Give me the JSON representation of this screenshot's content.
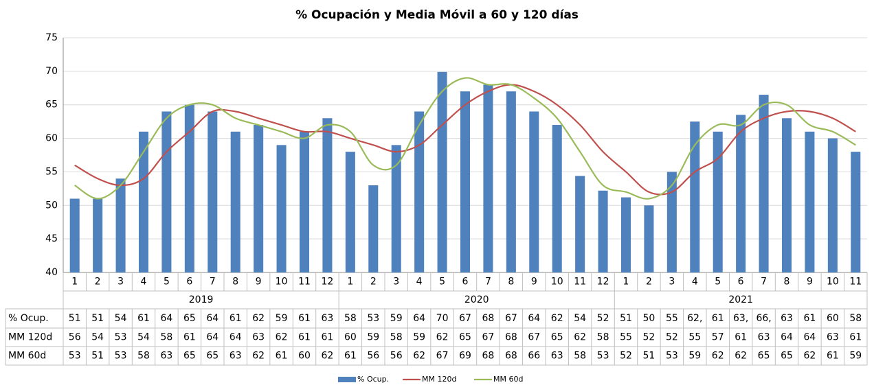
{
  "chart_data": {
    "type": "bar-line",
    "title": "% Ocupación y Media Móvil a 60 y 120 días",
    "groups": [
      {
        "name": "2019",
        "categories": [
          1,
          2,
          3,
          4,
          5,
          6,
          7,
          8,
          9,
          10,
          11,
          12
        ]
      },
      {
        "name": "2020",
        "categories": [
          1,
          2,
          3,
          4,
          5,
          6,
          7,
          8,
          9,
          10,
          11,
          12
        ]
      },
      {
        "name": "2021",
        "categories": [
          1,
          2,
          3,
          4,
          5,
          6,
          7,
          8,
          9,
          10,
          11
        ]
      }
    ],
    "series": [
      {
        "name": "% Ocup.",
        "type": "bar",
        "color": "#4f81bd",
        "values": [
          51,
          51,
          54,
          61,
          64,
          65,
          64,
          61,
          62,
          59,
          61,
          63,
          58,
          53,
          59,
          64,
          69.9,
          67,
          68,
          67,
          64,
          62,
          54.4,
          52.2,
          51.2,
          50,
          55,
          62.5,
          61,
          63.5,
          66.5,
          63,
          61,
          60,
          58
        ],
        "value_labels": [
          "51",
          "51",
          "54",
          "61",
          "64",
          "65",
          "64",
          "61",
          "62",
          "59",
          "61",
          "63",
          "58",
          "53",
          "59",
          "64",
          "70",
          "67",
          "68",
          "67",
          "64",
          "62",
          "54",
          "52",
          "51",
          "50",
          "55",
          "62,",
          "61",
          "63,",
          "66,",
          "63",
          "61",
          "60",
          "58"
        ]
      },
      {
        "name": "MM 120d",
        "type": "line",
        "color": "#c0504d",
        "values": [
          56,
          54,
          53,
          54,
          58,
          61,
          64,
          64,
          63,
          62,
          61,
          61,
          60,
          59,
          58,
          59,
          62,
          65,
          67,
          68,
          67,
          65,
          62,
          58,
          55,
          52,
          52,
          55,
          57,
          61,
          63,
          64,
          64,
          63,
          61
        ]
      },
      {
        "name": "MM 60d",
        "type": "line",
        "color": "#9bbb59",
        "values": [
          53,
          51,
          53,
          58,
          63,
          65,
          65,
          63,
          62,
          61,
          60,
          62,
          61,
          56,
          56,
          62,
          67,
          69,
          68,
          68,
          66,
          63,
          58,
          53,
          52,
          51,
          53,
          59,
          62,
          62,
          65,
          65,
          62,
          61,
          59
        ]
      }
    ],
    "ylim": [
      40,
      75
    ],
    "yticks": [
      40,
      45,
      50,
      55,
      60,
      65,
      70,
      75
    ],
    "grid": true,
    "legend": "bottom"
  }
}
